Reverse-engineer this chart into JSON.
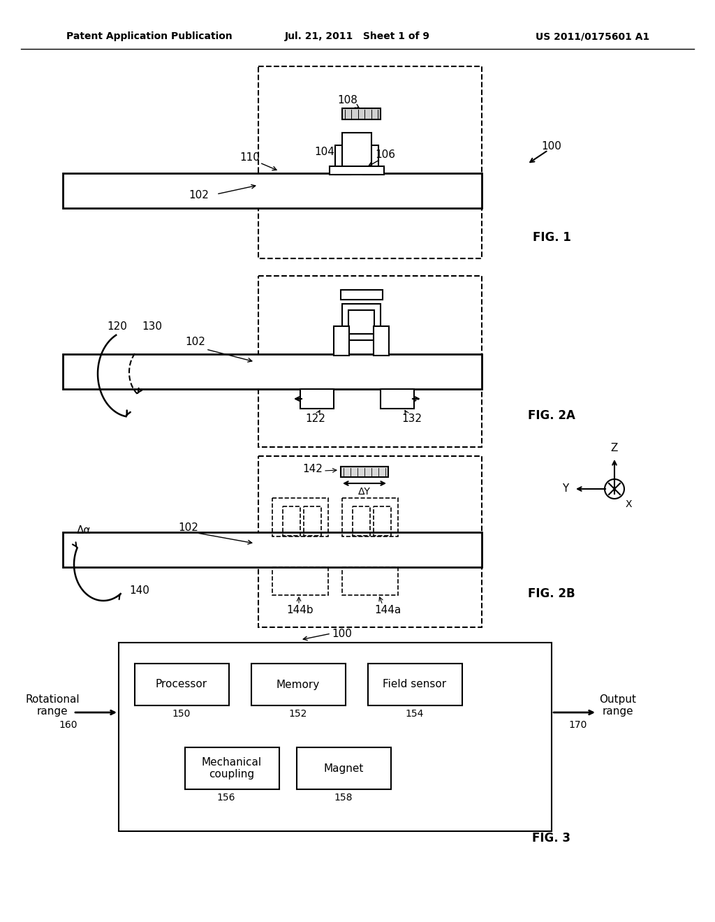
{
  "background_color": "#ffffff",
  "header_left": "Patent Application Publication",
  "header_center": "Jul. 21, 2011   Sheet 1 of 9",
  "header_right": "US 2011/0175601 A1",
  "fig1_label": "FIG. 1",
  "fig2a_label": "FIG. 2A",
  "fig2b_label": "FIG. 2B",
  "fig3_label": "FIG. 3",
  "label_100_fig1": "100",
  "label_102_fig1": "102",
  "label_104": "104",
  "label_106": "106",
  "label_108": "108",
  "label_110": "110",
  "label_120": "120",
  "label_122": "122",
  "label_130": "130",
  "label_132": "132",
  "label_102_fig2a": "102",
  "label_140": "140",
  "label_142": "142",
  "label_144a": "144a",
  "label_144b": "144b",
  "label_dalpha": "Δα",
  "label_deltay": "ΔY",
  "label_102_fig2b": "102",
  "box3_processor": "Processor",
  "box3_memory": "Memory",
  "box3_fieldsensor": "Field sensor",
  "box3_mechcoupling": "Mechanical\ncoupling",
  "box3_magnet": "Magnet",
  "label_150": "150",
  "label_152": "152",
  "label_154": "154",
  "label_156": "156",
  "label_158": "158",
  "label_160": "160",
  "label_170": "170",
  "label_100_fig3": "100",
  "text_rotational_range": "Rotational\nrange",
  "text_output_range": "Output\nrange"
}
